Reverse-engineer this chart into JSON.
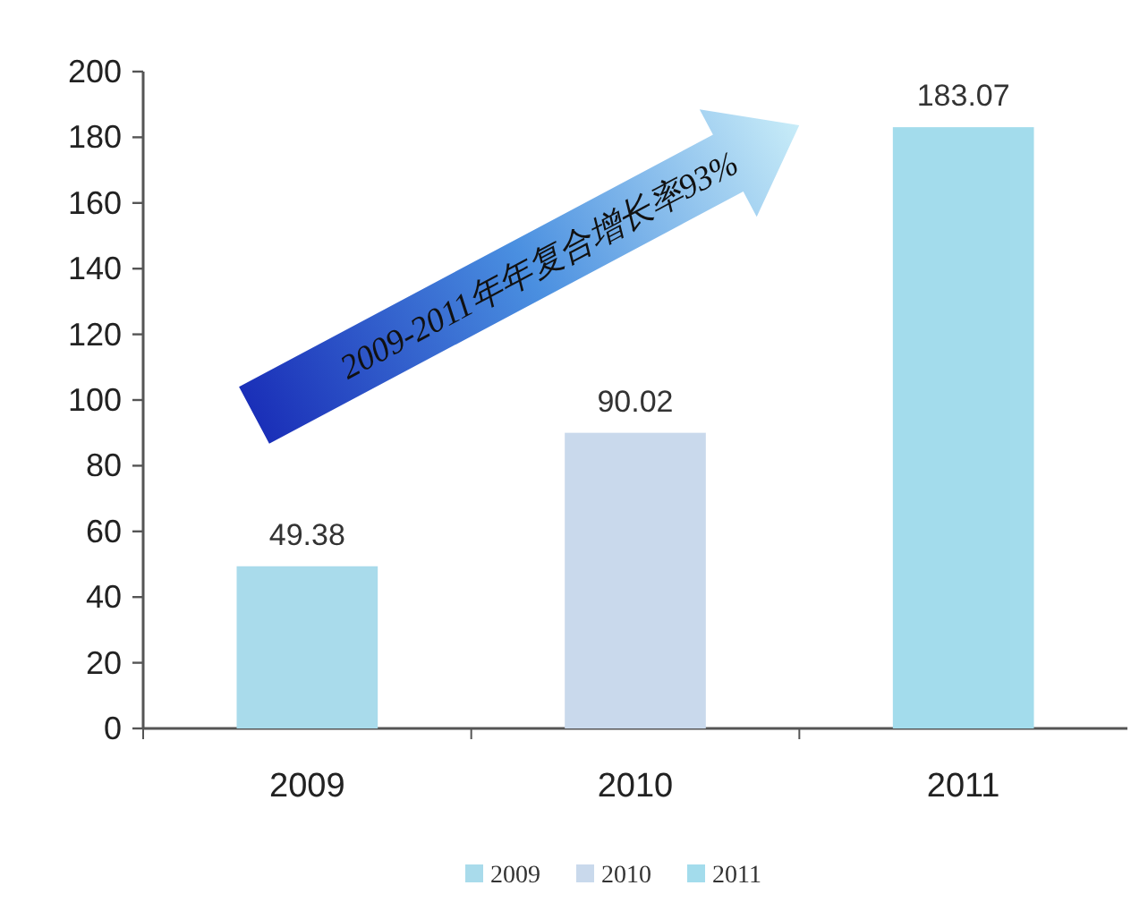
{
  "chart_data": {
    "type": "bar",
    "categories": [
      "2009",
      "2010",
      "2011"
    ],
    "series": [
      {
        "name": "2009",
        "color": "#a9dbeb",
        "values": [
          49.38,
          null,
          null
        ]
      },
      {
        "name": "2010",
        "color": "#c9d9ec",
        "values": [
          null,
          90.02,
          null
        ]
      },
      {
        "name": "2011",
        "color": "#a3dcec",
        "values": [
          null,
          null,
          183.07
        ]
      }
    ],
    "ylim": [
      0,
      200
    ],
    "yticks": [
      0,
      20,
      40,
      60,
      80,
      100,
      120,
      140,
      160,
      180,
      200
    ],
    "data_labels": true,
    "legend": "bottom",
    "grid": false,
    "annotations": [
      "2009-2011年年复合增长率93%"
    ]
  }
}
